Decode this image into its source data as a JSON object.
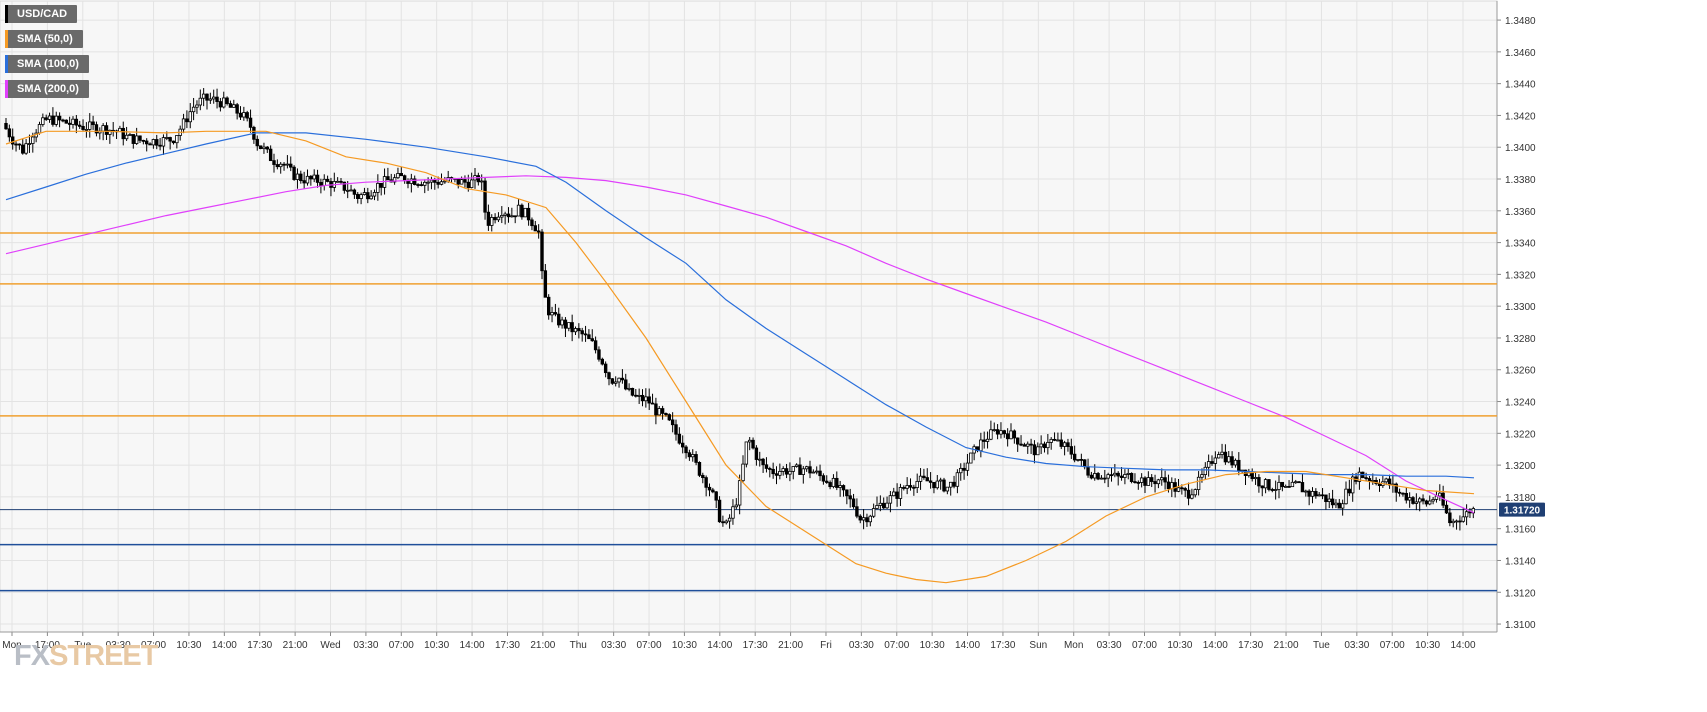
{
  "legend": [
    {
      "label": "USD/CAD",
      "color": "#000000"
    },
    {
      "label": "SMA (50,0)",
      "color": "#f59a23"
    },
    {
      "label": "SMA (100,0)",
      "color": "#2a6fdb"
    },
    {
      "label": "SMA (200,0)",
      "color": "#e040fb"
    }
  ],
  "watermark": {
    "part1": "FX",
    "part2": "STREET"
  },
  "chart_data": {
    "type": "candlestick",
    "symbol": "USD/CAD",
    "ylim": [
      1.3095,
      1.3492
    ],
    "y_ticks": [
      "1.3100",
      "1.3120",
      "1.3140",
      "1.3160",
      "1.3180",
      "1.3200",
      "1.3220",
      "1.3240",
      "1.3260",
      "1.3280",
      "1.3300",
      "1.3320",
      "1.3340",
      "1.3360",
      "1.3380",
      "1.3400",
      "1.3420",
      "1.3440",
      "1.3460",
      "1.3480"
    ],
    "x_ticks": [
      "Mon",
      "17:00",
      "Tue",
      "03:30",
      "07:00",
      "10:30",
      "14:00",
      "17:30",
      "21:00",
      "Wed",
      "03:30",
      "07:00",
      "10:30",
      "14:00",
      "17:30",
      "21:00",
      "Thu",
      "03:30",
      "07:00",
      "10:30",
      "14:00",
      "17:30",
      "21:00",
      "Fri",
      "03:30",
      "07:00",
      "10:30",
      "14:00",
      "17:30",
      "Sun",
      "Mon",
      "03:30",
      "07:00",
      "10:30",
      "14:00",
      "17:30",
      "21:00",
      "Tue",
      "03:30",
      "07:00",
      "10:30",
      "14:00"
    ],
    "current_price": {
      "value": 1.3172,
      "label": "1.31720",
      "color": "#1f3f73"
    },
    "horizontal_levels": [
      {
        "value": 1.3346,
        "color": "#f0a030"
      },
      {
        "value": 1.3314,
        "color": "#f0a030"
      },
      {
        "value": 1.3231,
        "color": "#f0a030"
      },
      {
        "value": 1.315,
        "color": "#1f4f9a"
      },
      {
        "value": 1.3121,
        "color": "#1f4f9a"
      }
    ],
    "price_path": [
      [
        0,
        1.3415
      ],
      [
        10,
        1.3405
      ],
      [
        20,
        1.3398
      ],
      [
        30,
        1.3409
      ],
      [
        45,
        1.3418
      ],
      [
        60,
        1.3416
      ],
      [
        80,
        1.3413
      ],
      [
        100,
        1.3412
      ],
      [
        115,
        1.341
      ],
      [
        125,
        1.3406
      ],
      [
        140,
        1.3404
      ],
      [
        155,
        1.3404
      ],
      [
        170,
        1.3405
      ],
      [
        180,
        1.3414
      ],
      [
        190,
        1.3425
      ],
      [
        200,
        1.343
      ],
      [
        210,
        1.343
      ],
      [
        220,
        1.3428
      ],
      [
        230,
        1.3424
      ],
      [
        240,
        1.342
      ],
      [
        248,
        1.3413
      ],
      [
        255,
        1.3402
      ],
      [
        262,
        1.3398
      ],
      [
        270,
        1.3392
      ],
      [
        280,
        1.339
      ],
      [
        290,
        1.3383
      ],
      [
        300,
        1.338
      ],
      [
        315,
        1.3379
      ],
      [
        330,
        1.3377
      ],
      [
        345,
        1.3374
      ],
      [
        355,
        1.3369
      ],
      [
        365,
        1.3371
      ],
      [
        375,
        1.3376
      ],
      [
        385,
        1.3379
      ],
      [
        400,
        1.3381
      ],
      [
        415,
        1.3379
      ],
      [
        430,
        1.3378
      ],
      [
        445,
        1.3379
      ],
      [
        460,
        1.3378
      ],
      [
        470,
        1.3378
      ],
      [
        478,
        1.3381
      ],
      [
        484,
        1.3352
      ],
      [
        492,
        1.3357
      ],
      [
        500,
        1.3361
      ],
      [
        508,
        1.3357
      ],
      [
        516,
        1.3361
      ],
      [
        525,
        1.3357
      ],
      [
        532,
        1.3351
      ],
      [
        537,
        1.3345
      ],
      [
        540,
        1.3312
      ],
      [
        545,
        1.3298
      ],
      [
        552,
        1.3292
      ],
      [
        560,
        1.3289
      ],
      [
        570,
        1.3285
      ],
      [
        580,
        1.3282
      ],
      [
        590,
        1.3276
      ],
      [
        600,
        1.3265
      ],
      [
        608,
        1.3253
      ],
      [
        615,
        1.3256
      ],
      [
        625,
        1.3246
      ],
      [
        635,
        1.3242
      ],
      [
        645,
        1.3241
      ],
      [
        655,
        1.3233
      ],
      [
        665,
        1.3228
      ],
      [
        675,
        1.3218
      ],
      [
        685,
        1.321
      ],
      [
        695,
        1.3198
      ],
      [
        705,
        1.3188
      ],
      [
        712,
        1.3178
      ],
      [
        718,
        1.3165
      ],
      [
        723,
        1.3161
      ],
      [
        728,
        1.3168
      ],
      [
        735,
        1.318
      ],
      [
        740,
        1.3198
      ],
      [
        745,
        1.3218
      ],
      [
        752,
        1.3208
      ],
      [
        760,
        1.3199
      ],
      [
        770,
        1.3196
      ],
      [
        780,
        1.3197
      ],
      [
        790,
        1.3196
      ],
      [
        800,
        1.3198
      ],
      [
        810,
        1.3196
      ],
      [
        820,
        1.3192
      ],
      [
        830,
        1.3189
      ],
      [
        840,
        1.3182
      ],
      [
        850,
        1.3176
      ],
      [
        858,
        1.3166
      ],
      [
        865,
        1.3168
      ],
      [
        875,
        1.3174
      ],
      [
        885,
        1.3178
      ],
      [
        895,
        1.3182
      ],
      [
        905,
        1.3188
      ],
      [
        915,
        1.319
      ],
      [
        925,
        1.319
      ],
      [
        935,
        1.3188
      ],
      [
        945,
        1.3186
      ],
      [
        955,
        1.3192
      ],
      [
        965,
        1.3202
      ],
      [
        975,
        1.3212
      ],
      [
        985,
        1.3218
      ],
      [
        995,
        1.3222
      ],
      [
        1005,
        1.322
      ],
      [
        1015,
        1.3216
      ],
      [
        1025,
        1.3212
      ],
      [
        1035,
        1.3208
      ],
      [
        1045,
        1.3216
      ],
      [
        1055,
        1.3214
      ],
      [
        1065,
        1.321
      ],
      [
        1075,
        1.3204
      ],
      [
        1085,
        1.3196
      ],
      [
        1095,
        1.3194
      ],
      [
        1105,
        1.3194
      ],
      [
        1115,
        1.3192
      ],
      [
        1125,
        1.3193
      ],
      [
        1135,
        1.3192
      ],
      [
        1145,
        1.3189
      ],
      [
        1155,
        1.3191
      ],
      [
        1165,
        1.3189
      ],
      [
        1175,
        1.3184
      ],
      [
        1185,
        1.3182
      ],
      [
        1195,
        1.3188
      ],
      [
        1205,
        1.3198
      ],
      [
        1215,
        1.321
      ],
      [
        1225,
        1.3204
      ],
      [
        1235,
        1.3199
      ],
      [
        1245,
        1.3196
      ],
      [
        1255,
        1.319
      ],
      [
        1265,
        1.3187
      ],
      [
        1275,
        1.3186
      ],
      [
        1285,
        1.3184
      ],
      [
        1295,
        1.3188
      ],
      [
        1305,
        1.3182
      ],
      [
        1315,
        1.3182
      ],
      [
        1325,
        1.3178
      ],
      [
        1335,
        1.3174
      ],
      [
        1345,
        1.3184
      ],
      [
        1355,
        1.3195
      ],
      [
        1365,
        1.3192
      ],
      [
        1375,
        1.319
      ],
      [
        1385,
        1.3189
      ],
      [
        1395,
        1.3183
      ],
      [
        1405,
        1.318
      ],
      [
        1415,
        1.3177
      ],
      [
        1425,
        1.3176
      ],
      [
        1435,
        1.3182
      ],
      [
        1442,
        1.3172
      ],
      [
        1448,
        1.3163
      ],
      [
        1455,
        1.3167
      ],
      [
        1462,
        1.3168
      ],
      [
        1468,
        1.3172
      ]
    ],
    "sma_50": [
      [
        0,
        1.3402
      ],
      [
        40,
        1.341
      ],
      [
        100,
        1.341
      ],
      [
        160,
        1.3409
      ],
      [
        200,
        1.341
      ],
      [
        260,
        1.341
      ],
      [
        300,
        1.3404
      ],
      [
        340,
        1.3394
      ],
      [
        380,
        1.339
      ],
      [
        420,
        1.3384
      ],
      [
        460,
        1.3374
      ],
      [
        500,
        1.337
      ],
      [
        540,
        1.3362
      ],
      [
        570,
        1.334
      ],
      [
        600,
        1.3315
      ],
      [
        640,
        1.328
      ],
      [
        680,
        1.324
      ],
      [
        720,
        1.32
      ],
      [
        760,
        1.3174
      ],
      [
        790,
        1.3162
      ],
      [
        820,
        1.315
      ],
      [
        850,
        1.3138
      ],
      [
        880,
        1.3132
      ],
      [
        910,
        1.3128
      ],
      [
        940,
        1.3126
      ],
      [
        980,
        1.313
      ],
      [
        1020,
        1.314
      ],
      [
        1060,
        1.3152
      ],
      [
        1100,
        1.3168
      ],
      [
        1140,
        1.318
      ],
      [
        1180,
        1.3188
      ],
      [
        1220,
        1.3194
      ],
      [
        1260,
        1.3196
      ],
      [
        1300,
        1.3196
      ],
      [
        1340,
        1.3192
      ],
      [
        1380,
        1.3188
      ],
      [
        1420,
        1.3184
      ],
      [
        1468,
        1.3182
      ]
    ],
    "sma_100": [
      [
        0,
        1.3367
      ],
      [
        40,
        1.3375
      ],
      [
        80,
        1.3383
      ],
      [
        120,
        1.339
      ],
      [
        160,
        1.3396
      ],
      [
        200,
        1.3402
      ],
      [
        250,
        1.3409
      ],
      [
        300,
        1.3409
      ],
      [
        360,
        1.3405
      ],
      [
        420,
        1.34
      ],
      [
        480,
        1.3394
      ],
      [
        530,
        1.3388
      ],
      [
        560,
        1.3378
      ],
      [
        600,
        1.336
      ],
      [
        640,
        1.3343
      ],
      [
        680,
        1.3327
      ],
      [
        720,
        1.3304
      ],
      [
        760,
        1.3286
      ],
      [
        800,
        1.327
      ],
      [
        840,
        1.3254
      ],
      [
        880,
        1.3238
      ],
      [
        920,
        1.3224
      ],
      [
        960,
        1.3211
      ],
      [
        1000,
        1.3205
      ],
      [
        1040,
        1.3201
      ],
      [
        1080,
        1.3199
      ],
      [
        1120,
        1.3198
      ],
      [
        1160,
        1.3197
      ],
      [
        1200,
        1.3197
      ],
      [
        1240,
        1.3196
      ],
      [
        1280,
        1.3195
      ],
      [
        1320,
        1.3194
      ],
      [
        1360,
        1.3194
      ],
      [
        1400,
        1.3193
      ],
      [
        1440,
        1.3193
      ],
      [
        1468,
        1.3192
      ]
    ],
    "sma_200": [
      [
        0,
        1.3333
      ],
      [
        40,
        1.3339
      ],
      [
        80,
        1.3345
      ],
      [
        120,
        1.3351
      ],
      [
        160,
        1.3357
      ],
      [
        200,
        1.3362
      ],
      [
        240,
        1.3367
      ],
      [
        280,
        1.3372
      ],
      [
        320,
        1.3376
      ],
      [
        360,
        1.3378
      ],
      [
        400,
        1.3379
      ],
      [
        440,
        1.338
      ],
      [
        480,
        1.3381
      ],
      [
        520,
        1.3382
      ],
      [
        560,
        1.3381
      ],
      [
        600,
        1.3379
      ],
      [
        640,
        1.3375
      ],
      [
        680,
        1.337
      ],
      [
        720,
        1.3363
      ],
      [
        760,
        1.3356
      ],
      [
        800,
        1.3347
      ],
      [
        840,
        1.3338
      ],
      [
        880,
        1.3327
      ],
      [
        920,
        1.3317
      ],
      [
        960,
        1.3308
      ],
      [
        1000,
        1.3299
      ],
      [
        1040,
        1.329
      ],
      [
        1080,
        1.328
      ],
      [
        1120,
        1.327
      ],
      [
        1160,
        1.326
      ],
      [
        1200,
        1.325
      ],
      [
        1240,
        1.324
      ],
      [
        1280,
        1.323
      ],
      [
        1320,
        1.3218
      ],
      [
        1360,
        1.3206
      ],
      [
        1400,
        1.319
      ],
      [
        1440,
        1.3178
      ],
      [
        1468,
        1.317
      ]
    ]
  }
}
